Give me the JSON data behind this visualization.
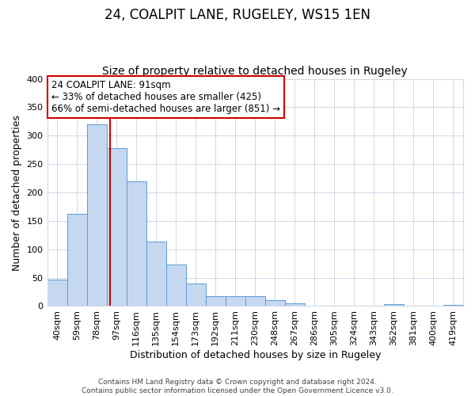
{
  "title": "24, COALPIT LANE, RUGELEY, WS15 1EN",
  "subtitle": "Size of property relative to detached houses in Rugeley",
  "xlabel": "Distribution of detached houses by size in Rugeley",
  "ylabel": "Number of detached properties",
  "bar_labels": [
    "40sqm",
    "59sqm",
    "78sqm",
    "97sqm",
    "116sqm",
    "135sqm",
    "154sqm",
    "173sqm",
    "192sqm",
    "211sqm",
    "230sqm",
    "248sqm",
    "267sqm",
    "286sqm",
    "305sqm",
    "324sqm",
    "343sqm",
    "362sqm",
    "381sqm",
    "400sqm",
    "419sqm"
  ],
  "bar_values": [
    47,
    162,
    320,
    278,
    220,
    114,
    73,
    39,
    18,
    18,
    17,
    10,
    5,
    0,
    0,
    0,
    0,
    4,
    0,
    0,
    2
  ],
  "bar_color": "#c5d8f0",
  "bar_edge_color": "#5a9bd5",
  "marker_color": "#cc0000",
  "annotation_line1": "24 COALPIT LANE: 91sqm",
  "annotation_line2": "← 33% of detached houses are smaller (425)",
  "annotation_line3": "66% of semi-detached houses are larger (851) →",
  "annotation_box_color": "#ffffff",
  "annotation_box_edge_color": "#cc0000",
  "ylim": [
    0,
    400
  ],
  "yticks": [
    0,
    50,
    100,
    150,
    200,
    250,
    300,
    350,
    400
  ],
  "footer_line1": "Contains HM Land Registry data © Crown copyright and database right 2024.",
  "footer_line2": "Contains public sector information licensed under the Open Government Licence v3.0.",
  "background_color": "#ffffff",
  "grid_color": "#d0d8e8",
  "title_fontsize": 12,
  "subtitle_fontsize": 10,
  "axis_label_fontsize": 9,
  "tick_fontsize": 8,
  "annotation_fontsize": 8.5,
  "footer_fontsize": 6.5
}
